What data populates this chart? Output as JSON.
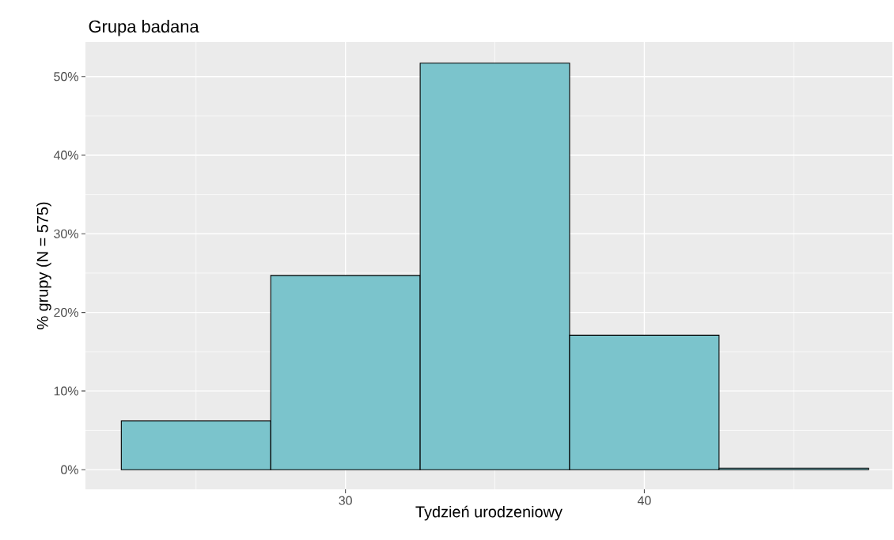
{
  "chart_data": {
    "type": "histogram",
    "title": "Grupa badana",
    "xlabel": "Tydzień urodzeniowy",
    "ylabel": "% grupy (N = 575)",
    "bins": [
      22.5,
      27.5,
      32.5,
      37.5,
      42.5,
      47.5
    ],
    "values": [
      6.2,
      24.7,
      51.7,
      17.1,
      0.2
    ],
    "color": "#7bc4cc",
    "xlim": [
      21.3,
      48.3
    ],
    "ylim": [
      -2.5,
      54.4
    ],
    "xticks": [
      30,
      40
    ],
    "yticks": [
      {
        "value": 0,
        "label": "0%"
      },
      {
        "value": 10,
        "label": "10%"
      },
      {
        "value": 20,
        "label": "20%"
      },
      {
        "value": 30,
        "label": "30%"
      },
      {
        "value": 40,
        "label": "40%"
      },
      {
        "value": 50,
        "label": "50%"
      }
    ],
    "grid": true
  }
}
